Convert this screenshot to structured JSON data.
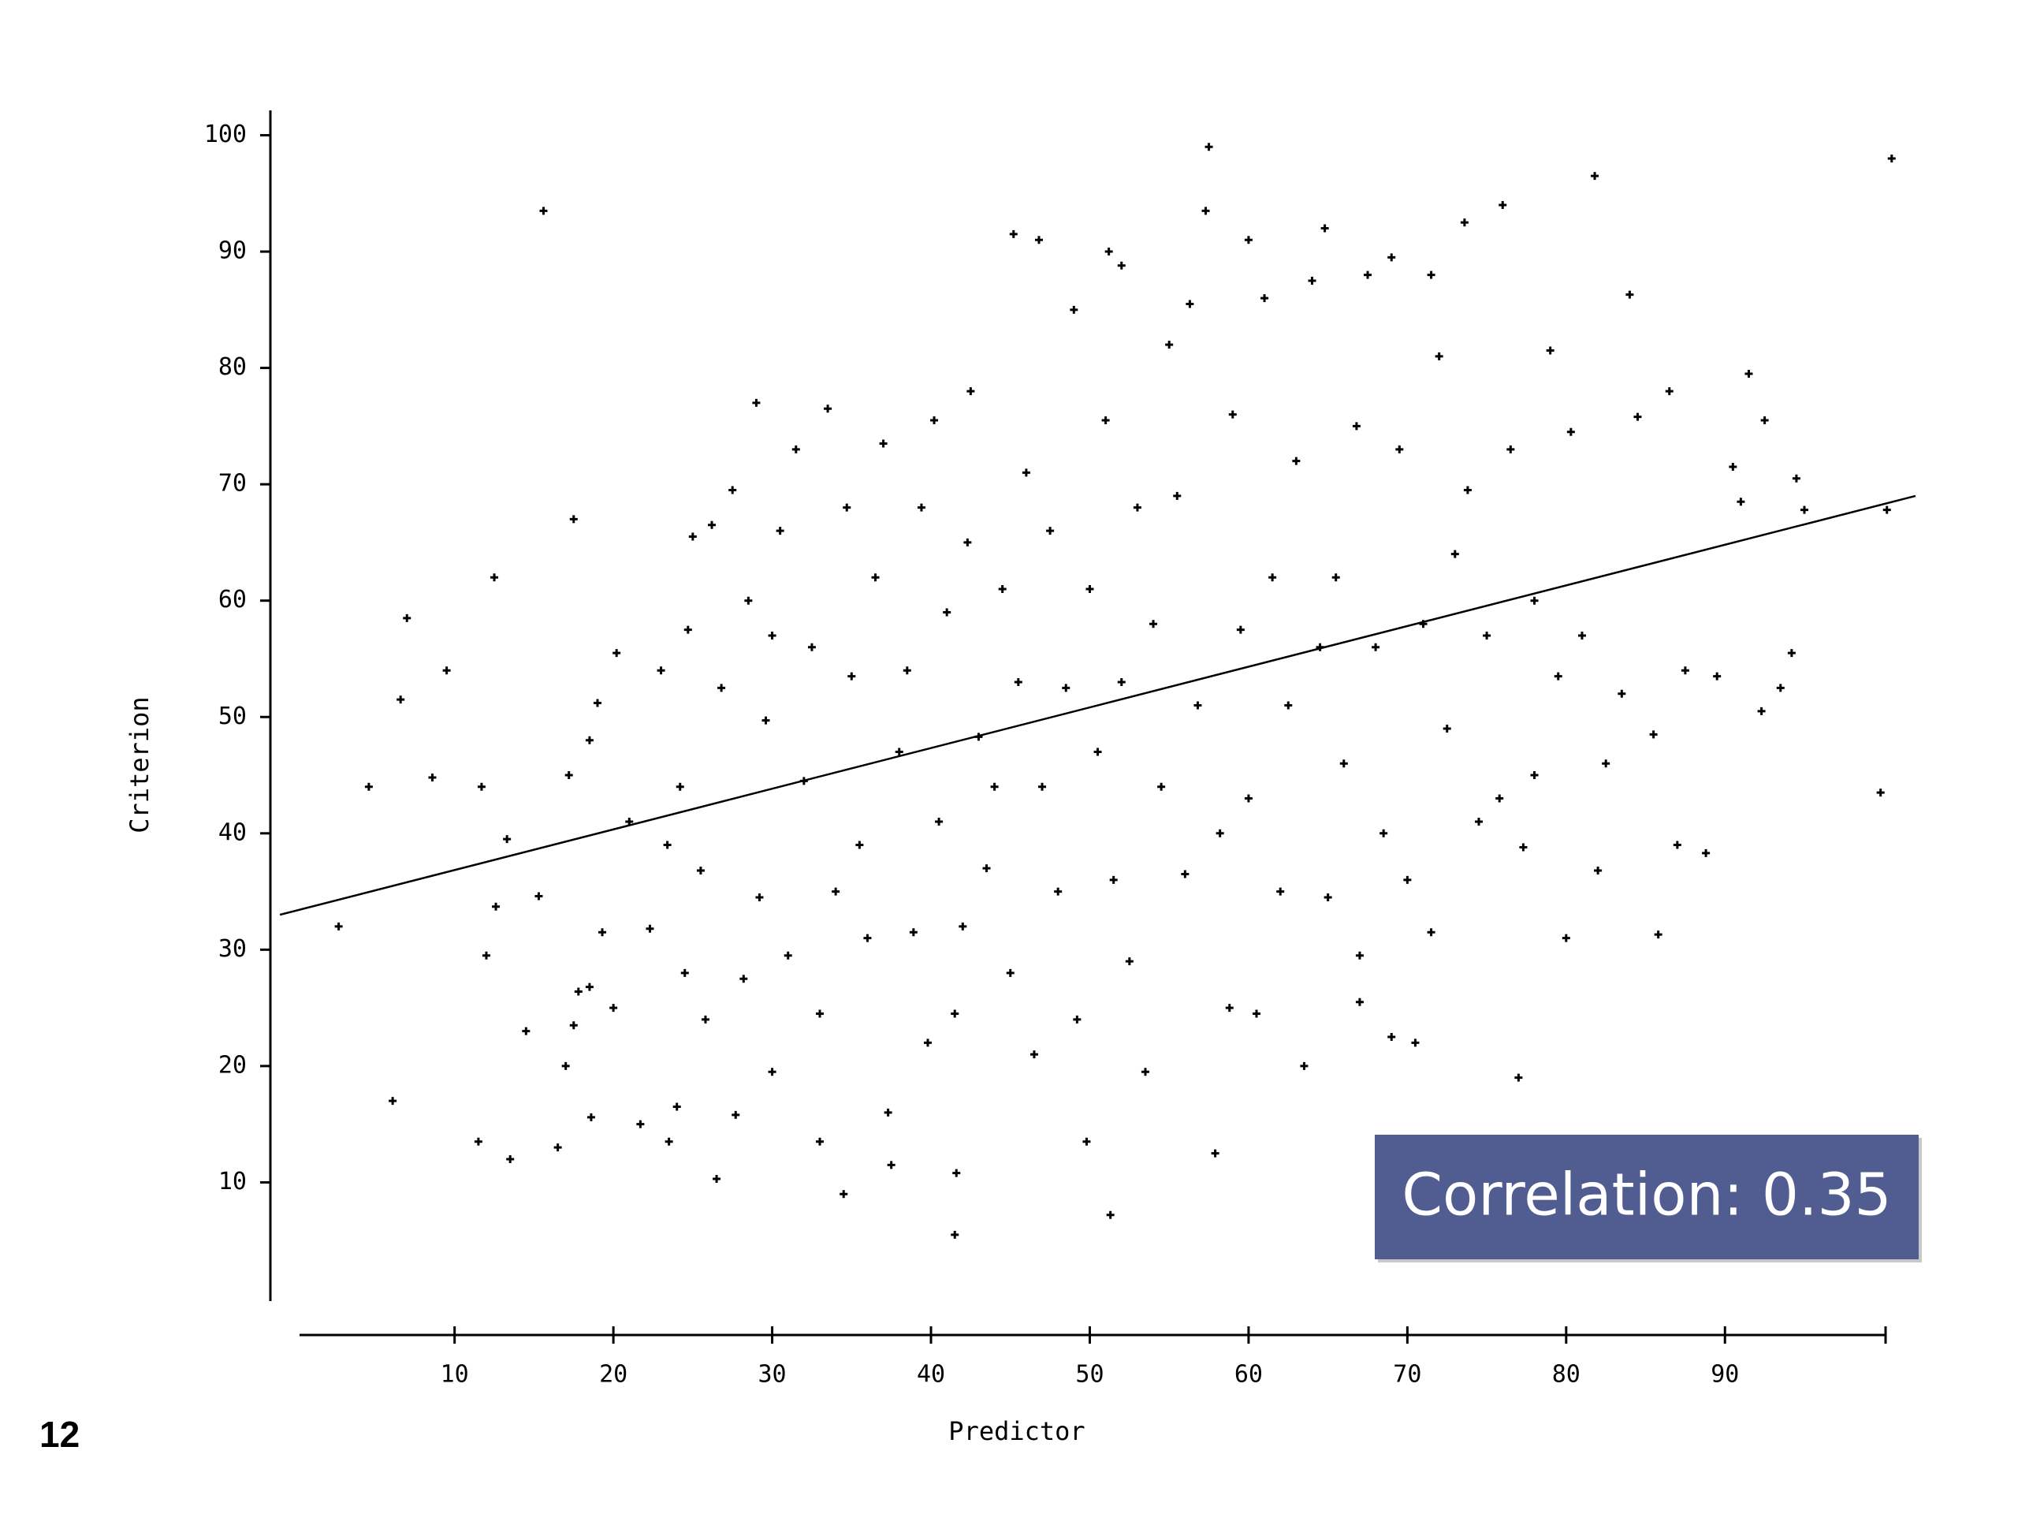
{
  "page_number": "12",
  "chart_data": {
    "type": "scatter",
    "xlabel": "Predictor",
    "ylabel": "Criterion",
    "annotation": "Correlation: 0.35",
    "xlim": [
      -1.6,
      102
    ],
    "ylim": [
      0,
      102
    ],
    "xticks": [
      10,
      20,
      30,
      40,
      50,
      60,
      70,
      80,
      90
    ],
    "yticks": [
      10,
      20,
      30,
      40,
      50,
      60,
      70,
      80,
      90,
      100
    ],
    "series": [
      {
        "color": "#000000",
        "x": [
          2.7,
          4.6,
          6.1,
          7,
          6.6,
          9.5,
          8.6,
          11.5,
          13.5,
          12.5,
          11.7,
          12,
          12.6,
          13.3,
          14.5,
          15.6,
          15.3,
          16.5,
          17.5,
          17,
          17.5,
          17.2,
          17.8,
          18.5,
          18.5,
          19,
          18.6,
          19.3,
          20,
          20.2,
          21,
          21.7,
          22.3,
          23,
          23.4,
          23.5,
          24,
          24.2,
          24.5,
          24.7,
          25,
          25.5,
          25.8,
          26.2,
          26.5,
          26.8,
          27.5,
          27.7,
          28.2,
          28.5,
          29,
          29.2,
          29.6,
          30,
          30,
          30.5,
          31,
          31.5,
          32,
          32.5,
          33,
          33,
          33.5,
          34,
          34.5,
          34.7,
          35,
          35.5,
          36,
          36.5,
          37,
          37.3,
          37.5,
          38,
          38.5,
          38.9,
          39.4,
          39.8,
          40.2,
          40.5,
          41,
          41.5,
          41.5,
          41.6,
          42,
          42.3,
          42.5,
          43,
          43.5,
          44,
          44.5,
          45,
          45.2,
          45.5,
          46,
          46.5,
          46.8,
          47,
          47.5,
          48,
          48.5,
          49,
          49.2,
          49.8,
          50,
          50.5,
          51,
          51.2,
          51.3,
          51.5,
          52,
          52,
          52.5,
          53,
          53.5,
          54,
          54.5,
          55,
          55.5,
          56,
          56.3,
          56.8,
          57.5,
          57.3,
          57.9,
          58.2,
          58.8,
          59,
          59.5,
          60,
          60,
          60.5,
          61,
          61.5,
          62,
          62.5,
          63,
          63.5,
          64,
          64.5,
          64.8,
          65,
          65.5,
          66,
          66.8,
          67,
          67,
          67.5,
          68,
          68.5,
          69,
          69,
          69.5,
          70,
          70.5,
          71,
          71.5,
          71.5,
          72,
          72.5,
          73,
          73.6,
          73.8,
          74.5,
          75,
          75.8,
          76,
          76.5,
          77,
          77.3,
          78,
          78,
          79,
          79.5,
          80,
          80.3,
          81,
          81.8,
          82,
          82.5,
          83.5,
          84,
          84.5,
          85.5,
          85.8,
          86.5,
          87.5,
          87,
          88.8,
          89.5,
          90.5,
          91,
          91.5,
          92.3,
          92.5,
          93.5,
          94.2,
          94.5,
          95,
          99.8,
          100.2,
          100.5
        ],
        "values": [
          32,
          44,
          17,
          58.5,
          51.5,
          54,
          44.8,
          13.5,
          12,
          62,
          44,
          29.5,
          33.7,
          39.5,
          23,
          93.5,
          34.6,
          13,
          67,
          20,
          23.5,
          45,
          26.4,
          26.8,
          48,
          51.2,
          15.6,
          31.5,
          25,
          55.5,
          41,
          15,
          31.8,
          54,
          39,
          13.5,
          16.5,
          44,
          28,
          57.5,
          65.5,
          36.8,
          24,
          66.5,
          10.3,
          52.5,
          69.5,
          15.8,
          27.5,
          60,
          77,
          34.5,
          49.7,
          19.5,
          57,
          66,
          29.5,
          73,
          44.5,
          56,
          24.5,
          13.5,
          76.5,
          35,
          9,
          68,
          53.5,
          39,
          31,
          62,
          73.5,
          16,
          11.5,
          47,
          54,
          31.5,
          68,
          22,
          75.5,
          41,
          59,
          5.5,
          24.5,
          10.8,
          32,
          65,
          78,
          48.3,
          37,
          44,
          61,
          28,
          91.5,
          53,
          71,
          21,
          91,
          44,
          66,
          35,
          52.5,
          85,
          24,
          13.5,
          61,
          47,
          75.5,
          90,
          7.2,
          36,
          88.8,
          53,
          29,
          68,
          19.5,
          58,
          44,
          82,
          69,
          36.5,
          85.5,
          51,
          99,
          93.5,
          12.5,
          40,
          25,
          76,
          57.5,
          91,
          43,
          24.5,
          86,
          62,
          35,
          51,
          72,
          20,
          87.5,
          56,
          92,
          34.5,
          62,
          46,
          75,
          29.5,
          25.5,
          88,
          56,
          40,
          22.5,
          89.5,
          73,
          36,
          22,
          58,
          88,
          31.5,
          81,
          49,
          64,
          92.5,
          69.5,
          41,
          57,
          43,
          94,
          73,
          19,
          38.8,
          60,
          45,
          81.5,
          53.5,
          31,
          74.5,
          57,
          96.5,
          36.8,
          46,
          52,
          86.3,
          75.8,
          48.5,
          31.3,
          78,
          54,
          39,
          38.3,
          53.5,
          71.5,
          68.5,
          79.5,
          50.5,
          75.5,
          52.5,
          55.5,
          70.5,
          67.8,
          43.5,
          67.8,
          98
        ]
      }
    ],
    "regression_line": {
      "color": "#000000",
      "x": [
        -1,
        102
      ],
      "values": [
        33,
        69
      ]
    },
    "annotation_color": "#515c91"
  }
}
